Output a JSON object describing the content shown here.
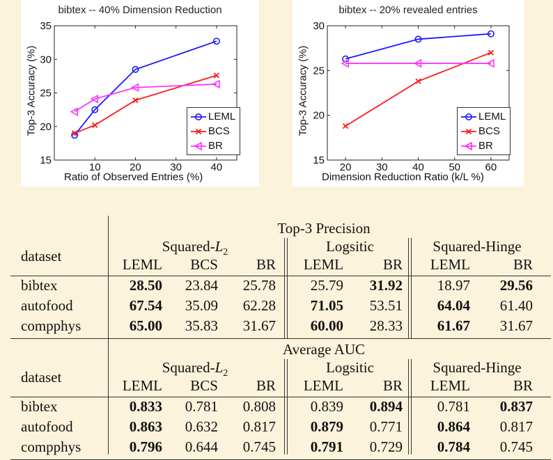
{
  "chart_data": [
    {
      "type": "line",
      "title": "bibtex -- 40% Dimension Reduction",
      "xlabel": "Ratio of Observed Entries (%)",
      "ylabel": "Top-3 Accuracy (%)",
      "xlim": [
        0,
        45
      ],
      "ylim": [
        15,
        35
      ],
      "xticks": [
        "10",
        "20",
        "30",
        "40"
      ],
      "yticks": [
        "15",
        "20",
        "25",
        "30",
        "35"
      ],
      "legend_position": "lower-right",
      "x": [
        5,
        10,
        20,
        40
      ],
      "series": [
        {
          "name": "LEML",
          "color": "#1a1aff",
          "marker": "circle",
          "values": [
            18.7,
            22.5,
            28.5,
            32.7
          ]
        },
        {
          "name": "BCS",
          "color": "#ff1a1a",
          "marker": "x",
          "values": [
            19.0,
            20.2,
            23.9,
            27.6
          ]
        },
        {
          "name": "BR",
          "color": "#ff33ff",
          "marker": "triangle-left",
          "values": [
            22.2,
            24.1,
            25.8,
            26.3
          ]
        }
      ]
    },
    {
      "type": "line",
      "title": "bibtex -- 20% revealed entries",
      "xlabel": "Dimension Reduction Ratio (k/L %)",
      "ylabel": "Top-3 Accuracy (%)",
      "xlim": [
        15,
        65
      ],
      "ylim": [
        15,
        30
      ],
      "xticks": [
        "20",
        "30",
        "40",
        "50",
        "60"
      ],
      "yticks": [
        "15",
        "20",
        "25",
        "30"
      ],
      "legend_position": "lower-right",
      "x": [
        20,
        40,
        60
      ],
      "series": [
        {
          "name": "LEML",
          "color": "#1a1aff",
          "marker": "circle",
          "values": [
            26.3,
            28.5,
            29.1
          ]
        },
        {
          "name": "BCS",
          "color": "#ff1a1a",
          "marker": "x",
          "values": [
            18.8,
            23.8,
            27.0
          ]
        },
        {
          "name": "BR",
          "color": "#ff33ff",
          "marker": "triangle-left",
          "values": [
            25.8,
            25.8,
            25.8
          ]
        }
      ]
    }
  ],
  "tables": [
    {
      "title": "Top-3 Precision",
      "dataset_header": "dataset",
      "groups": [
        "Squared-",
        "Logsitic",
        "Squared-Hinge"
      ],
      "loss_var": "L",
      "loss_sub": "2",
      "columns": [
        "LEML",
        "BCS",
        "BR",
        "LEML",
        "BR",
        "LEML",
        "BR"
      ],
      "rows": [
        {
          "dataset": "bibtex",
          "values": [
            "28.50",
            "23.84",
            "25.78",
            "25.79",
            "31.92",
            "18.97",
            "29.56"
          ],
          "bold": [
            true,
            false,
            false,
            false,
            true,
            false,
            true
          ]
        },
        {
          "dataset": "autofood",
          "values": [
            "67.54",
            "35.09",
            "62.28",
            "71.05",
            "53.51",
            "64.04",
            "61.40"
          ],
          "bold": [
            true,
            false,
            false,
            true,
            false,
            true,
            false
          ]
        },
        {
          "dataset": "compphys",
          "values": [
            "65.00",
            "35.83",
            "31.67",
            "60.00",
            "28.33",
            "61.67",
            "31.67"
          ],
          "bold": [
            true,
            false,
            false,
            true,
            false,
            true,
            false
          ]
        }
      ]
    },
    {
      "title": "Average AUC",
      "dataset_header": "dataset",
      "groups": [
        "Squared-",
        "Logsitic",
        "Squared-Hinge"
      ],
      "loss_var": "L",
      "loss_sub": "2",
      "columns": [
        "LEML",
        "BCS",
        "BR",
        "LEML",
        "BR",
        "LEML",
        "BR"
      ],
      "rows": [
        {
          "dataset": "bibtex",
          "values": [
            "0.833",
            "0.781",
            "0.808",
            "0.839",
            "0.894",
            "0.781",
            "0.837"
          ],
          "bold": [
            true,
            false,
            false,
            false,
            true,
            false,
            true
          ]
        },
        {
          "dataset": "autofood",
          "values": [
            "0.863",
            "0.632",
            "0.817",
            "0.879",
            "0.771",
            "0.864",
            "0.817"
          ],
          "bold": [
            true,
            false,
            false,
            true,
            false,
            true,
            false
          ]
        },
        {
          "dataset": "compphys",
          "values": [
            "0.796",
            "0.644",
            "0.745",
            "0.791",
            "0.729",
            "0.784",
            "0.745"
          ],
          "bold": [
            true,
            false,
            false,
            true,
            false,
            true,
            false
          ]
        }
      ]
    }
  ]
}
